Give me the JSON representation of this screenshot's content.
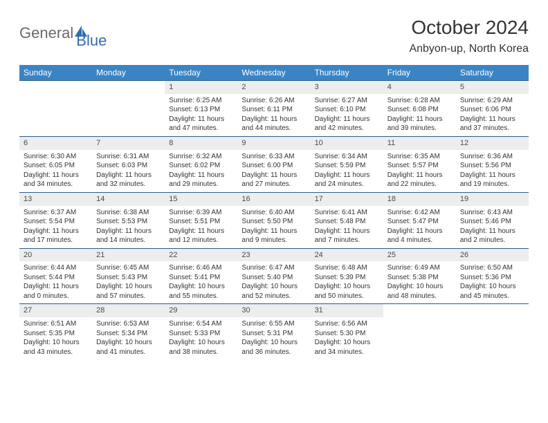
{
  "brand": {
    "part1": "General",
    "part2": "Blue"
  },
  "title": "October 2024",
  "location": "Anbyon-up, North Korea",
  "colors": {
    "header_bg": "#3b84c4",
    "header_text": "#ffffff",
    "daynum_bg": "#eceded",
    "row_border": "#2a5a8a",
    "logo_blue": "#2f6db0"
  },
  "weekdays": [
    "Sunday",
    "Monday",
    "Tuesday",
    "Wednesday",
    "Thursday",
    "Friday",
    "Saturday"
  ],
  "leading_blanks": 2,
  "days": [
    {
      "n": "1",
      "sunrise": "6:25 AM",
      "sunset": "6:13 PM",
      "daylight": "11 hours and 47 minutes."
    },
    {
      "n": "2",
      "sunrise": "6:26 AM",
      "sunset": "6:11 PM",
      "daylight": "11 hours and 44 minutes."
    },
    {
      "n": "3",
      "sunrise": "6:27 AM",
      "sunset": "6:10 PM",
      "daylight": "11 hours and 42 minutes."
    },
    {
      "n": "4",
      "sunrise": "6:28 AM",
      "sunset": "6:08 PM",
      "daylight": "11 hours and 39 minutes."
    },
    {
      "n": "5",
      "sunrise": "6:29 AM",
      "sunset": "6:06 PM",
      "daylight": "11 hours and 37 minutes."
    },
    {
      "n": "6",
      "sunrise": "6:30 AM",
      "sunset": "6:05 PM",
      "daylight": "11 hours and 34 minutes."
    },
    {
      "n": "7",
      "sunrise": "6:31 AM",
      "sunset": "6:03 PM",
      "daylight": "11 hours and 32 minutes."
    },
    {
      "n": "8",
      "sunrise": "6:32 AM",
      "sunset": "6:02 PM",
      "daylight": "11 hours and 29 minutes."
    },
    {
      "n": "9",
      "sunrise": "6:33 AM",
      "sunset": "6:00 PM",
      "daylight": "11 hours and 27 minutes."
    },
    {
      "n": "10",
      "sunrise": "6:34 AM",
      "sunset": "5:59 PM",
      "daylight": "11 hours and 24 minutes."
    },
    {
      "n": "11",
      "sunrise": "6:35 AM",
      "sunset": "5:57 PM",
      "daylight": "11 hours and 22 minutes."
    },
    {
      "n": "12",
      "sunrise": "6:36 AM",
      "sunset": "5:56 PM",
      "daylight": "11 hours and 19 minutes."
    },
    {
      "n": "13",
      "sunrise": "6:37 AM",
      "sunset": "5:54 PM",
      "daylight": "11 hours and 17 minutes."
    },
    {
      "n": "14",
      "sunrise": "6:38 AM",
      "sunset": "5:53 PM",
      "daylight": "11 hours and 14 minutes."
    },
    {
      "n": "15",
      "sunrise": "6:39 AM",
      "sunset": "5:51 PM",
      "daylight": "11 hours and 12 minutes."
    },
    {
      "n": "16",
      "sunrise": "6:40 AM",
      "sunset": "5:50 PM",
      "daylight": "11 hours and 9 minutes."
    },
    {
      "n": "17",
      "sunrise": "6:41 AM",
      "sunset": "5:48 PM",
      "daylight": "11 hours and 7 minutes."
    },
    {
      "n": "18",
      "sunrise": "6:42 AM",
      "sunset": "5:47 PM",
      "daylight": "11 hours and 4 minutes."
    },
    {
      "n": "19",
      "sunrise": "6:43 AM",
      "sunset": "5:46 PM",
      "daylight": "11 hours and 2 minutes."
    },
    {
      "n": "20",
      "sunrise": "6:44 AM",
      "sunset": "5:44 PM",
      "daylight": "11 hours and 0 minutes."
    },
    {
      "n": "21",
      "sunrise": "6:45 AM",
      "sunset": "5:43 PM",
      "daylight": "10 hours and 57 minutes."
    },
    {
      "n": "22",
      "sunrise": "6:46 AM",
      "sunset": "5:41 PM",
      "daylight": "10 hours and 55 minutes."
    },
    {
      "n": "23",
      "sunrise": "6:47 AM",
      "sunset": "5:40 PM",
      "daylight": "10 hours and 52 minutes."
    },
    {
      "n": "24",
      "sunrise": "6:48 AM",
      "sunset": "5:39 PM",
      "daylight": "10 hours and 50 minutes."
    },
    {
      "n": "25",
      "sunrise": "6:49 AM",
      "sunset": "5:38 PM",
      "daylight": "10 hours and 48 minutes."
    },
    {
      "n": "26",
      "sunrise": "6:50 AM",
      "sunset": "5:36 PM",
      "daylight": "10 hours and 45 minutes."
    },
    {
      "n": "27",
      "sunrise": "6:51 AM",
      "sunset": "5:35 PM",
      "daylight": "10 hours and 43 minutes."
    },
    {
      "n": "28",
      "sunrise": "6:53 AM",
      "sunset": "5:34 PM",
      "daylight": "10 hours and 41 minutes."
    },
    {
      "n": "29",
      "sunrise": "6:54 AM",
      "sunset": "5:33 PM",
      "daylight": "10 hours and 38 minutes."
    },
    {
      "n": "30",
      "sunrise": "6:55 AM",
      "sunset": "5:31 PM",
      "daylight": "10 hours and 36 minutes."
    },
    {
      "n": "31",
      "sunrise": "6:56 AM",
      "sunset": "5:30 PM",
      "daylight": "10 hours and 34 minutes."
    }
  ],
  "labels": {
    "sunrise": "Sunrise: ",
    "sunset": "Sunset: ",
    "daylight": "Daylight: "
  }
}
